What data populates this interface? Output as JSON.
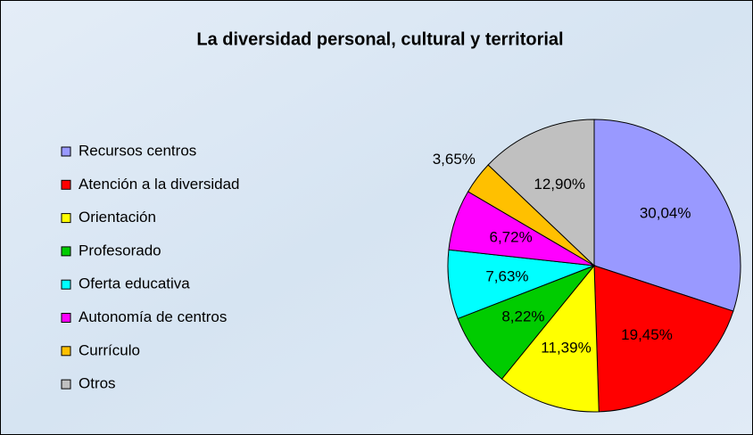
{
  "chart_data": {
    "type": "pie",
    "title": "La diversidad personal, cultural y territorial",
    "categories": [
      "Recursos centros",
      "Atención a la diversidad",
      "Orientación",
      "Profesorado",
      "Oferta educativa",
      "Autonomía de centros",
      "Currículo",
      "Otros"
    ],
    "values": [
      30.04,
      19.45,
      11.39,
      8.22,
      7.63,
      6.72,
      3.65,
      12.9
    ],
    "value_labels": [
      "30,04%",
      "19,45%",
      "11,39%",
      "8,22%",
      "7,63%",
      "6,72%",
      "3,65%",
      "12,90%"
    ],
    "colors": [
      "#9999ff",
      "#ff0000",
      "#ffff00",
      "#00cc00",
      "#00ffff",
      "#ff00ff",
      "#ffc000",
      "#c0c0c0"
    ],
    "legend": "left"
  }
}
